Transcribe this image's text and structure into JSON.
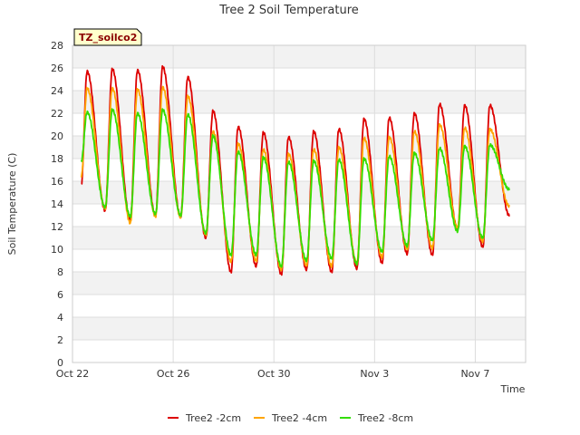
{
  "chart_data": {
    "type": "line",
    "title": "Tree 2 Soil Temperature",
    "site_label": "TZ_soilco2",
    "xlabel": "Time",
    "ylabel": "Soil Temperature (C)",
    "ylim": [
      0,
      28
    ],
    "yticks": [
      0,
      2,
      4,
      6,
      8,
      10,
      12,
      14,
      16,
      18,
      20,
      22,
      24,
      26,
      28
    ],
    "xlim_day": [
      0,
      18
    ],
    "xticks": [
      {
        "day": 0,
        "label": "Oct 22"
      },
      {
        "day": 4,
        "label": "Oct 26"
      },
      {
        "day": 8,
        "label": "Oct 30"
      },
      {
        "day": 12,
        "label": "Nov 3"
      },
      {
        "day": 16,
        "label": "Nov 7"
      }
    ],
    "grid": true,
    "legend_position": "bottom",
    "series": [
      {
        "name": "Tree2 -2cm",
        "color": "#dd0000",
        "daily": [
          {
            "min": 13.6,
            "max": 25.7
          },
          {
            "min": 13.4,
            "max": 25.9
          },
          {
            "min": 12.6,
            "max": 25.8
          },
          {
            "min": 13.0,
            "max": 26.1
          },
          {
            "min": 12.9,
            "max": 25.2
          },
          {
            "min": 11.0,
            "max": 22.2
          },
          {
            "min": 8.0,
            "max": 20.8
          },
          {
            "min": 8.5,
            "max": 20.3
          },
          {
            "min": 7.8,
            "max": 19.9
          },
          {
            "min": 8.2,
            "max": 20.4
          },
          {
            "min": 8.0,
            "max": 20.6
          },
          {
            "min": 8.3,
            "max": 21.5
          },
          {
            "min": 8.8,
            "max": 21.6
          },
          {
            "min": 9.6,
            "max": 22.0
          },
          {
            "min": 9.5,
            "max": 22.8
          },
          {
            "min": 11.8,
            "max": 22.7
          },
          {
            "min": 10.2,
            "max": 22.7
          }
        ],
        "start": 15.7,
        "end": 13.0
      },
      {
        "name": "Tree2 -4cm",
        "color": "#ffa500",
        "daily": [
          {
            "min": 12.8,
            "max": 24.2
          },
          {
            "min": 13.6,
            "max": 24.2
          },
          {
            "min": 12.3,
            "max": 24.1
          },
          {
            "min": 12.9,
            "max": 24.3
          },
          {
            "min": 12.8,
            "max": 23.5
          },
          {
            "min": 11.3,
            "max": 20.4
          },
          {
            "min": 8.9,
            "max": 19.3
          },
          {
            "min": 9.0,
            "max": 18.8
          },
          {
            "min": 8.2,
            "max": 18.4
          },
          {
            "min": 8.6,
            "max": 18.8
          },
          {
            "min": 8.5,
            "max": 19.0
          },
          {
            "min": 8.8,
            "max": 19.8
          },
          {
            "min": 9.3,
            "max": 19.9
          },
          {
            "min": 10.0,
            "max": 20.4
          },
          {
            "min": 10.1,
            "max": 21.0
          },
          {
            "min": 11.9,
            "max": 20.7
          },
          {
            "min": 10.7,
            "max": 20.6
          }
        ],
        "start": 16.4,
        "end": 13.8
      },
      {
        "name": "Tree2 -8cm",
        "color": "#33dd00",
        "daily": [
          {
            "min": 13.3,
            "max": 22.1
          },
          {
            "min": 13.7,
            "max": 22.3
          },
          {
            "min": 12.9,
            "max": 22.0
          },
          {
            "min": 13.1,
            "max": 22.3
          },
          {
            "min": 13.0,
            "max": 21.9
          },
          {
            "min": 11.4,
            "max": 20.0
          },
          {
            "min": 9.5,
            "max": 18.6
          },
          {
            "min": 9.5,
            "max": 18.1
          },
          {
            "min": 8.5,
            "max": 17.7
          },
          {
            "min": 9.0,
            "max": 17.8
          },
          {
            "min": 9.2,
            "max": 17.9
          },
          {
            "min": 8.7,
            "max": 18.0
          },
          {
            "min": 9.8,
            "max": 18.2
          },
          {
            "min": 10.3,
            "max": 18.5
          },
          {
            "min": 10.8,
            "max": 18.9
          },
          {
            "min": 11.6,
            "max": 19.1
          },
          {
            "min": 11.0,
            "max": 19.2
          }
        ],
        "start": 17.8,
        "end": 15.3
      }
    ]
  }
}
